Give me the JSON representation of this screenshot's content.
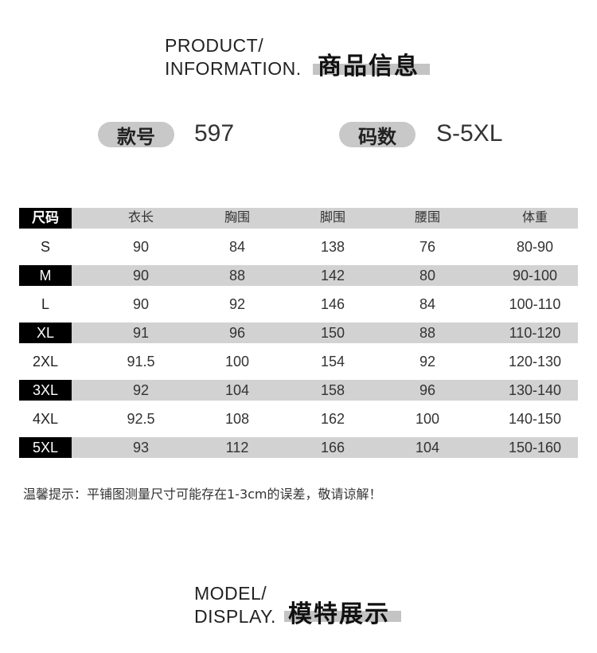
{
  "product_header": {
    "en_line1": "PRODUCT/",
    "en_line2": "INFORMATION.",
    "cn": "商品信息"
  },
  "style_label": "款号",
  "style_value": "597",
  "size_label": "码数",
  "size_value": "S-5XL",
  "table": {
    "headers": [
      "尺码",
      "衣长",
      "胸围",
      "脚围",
      "腰围",
      "体重"
    ],
    "rows": [
      [
        "S",
        "90",
        "84",
        "138",
        "76",
        "80-90"
      ],
      [
        "M",
        "90",
        "88",
        "142",
        "80",
        "90-100"
      ],
      [
        "L",
        "90",
        "92",
        "146",
        "84",
        "100-110"
      ],
      [
        "XL",
        "91",
        "96",
        "150",
        "88",
        "110-120"
      ],
      [
        "2XL",
        "91.5",
        "100",
        "154",
        "92",
        "120-130"
      ],
      [
        "3XL",
        "92",
        "104",
        "158",
        "96",
        "130-140"
      ],
      [
        "4XL",
        "92.5",
        "108",
        "162",
        "100",
        "140-150"
      ],
      [
        "5XL",
        "93",
        "112",
        "166",
        "104",
        "150-160"
      ]
    ]
  },
  "note": "温馨提示：平铺图测量尺寸可能存在1-3cm的误差，敬请谅解！",
  "model_header": {
    "en_line1": "MODEL/",
    "en_line2": "DISPLAY.",
    "cn": "模特展示"
  },
  "colors": {
    "band": "#d2d2d2",
    "size_cell": "#000000",
    "highlight": "#c4c4c4"
  }
}
